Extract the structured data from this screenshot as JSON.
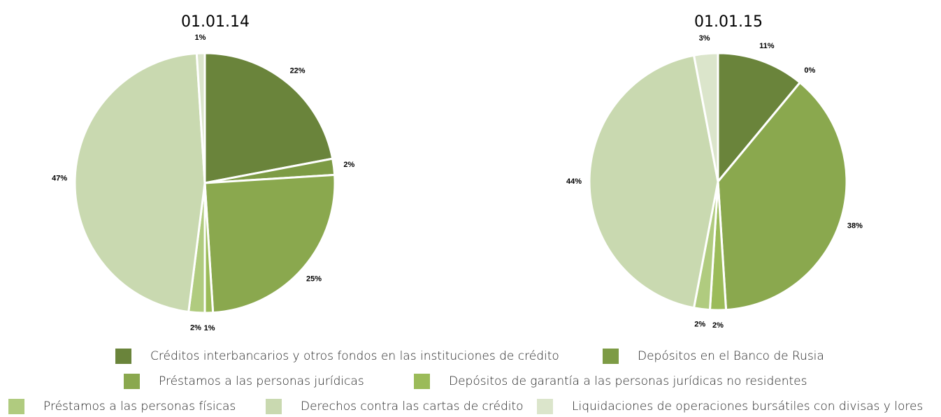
{
  "chart_data": [
    {
      "type": "pie",
      "title": "01.01.14",
      "categories": [
        "Créditos interbancarios y otros fondos en las instituciones de crédito",
        "Depósitos en el Banco de Rusia",
        "Préstamos a las personas jurídicas",
        "Depósitos de garantía a las personas jurídicas no residentes",
        "Préstamos a las personas físicas",
        "Derechos contra las cartas de crédito",
        "Liquidaciones de operaciones bursátiles con divisas y lores"
      ],
      "values": [
        22,
        2,
        25,
        1,
        2,
        47,
        1
      ],
      "value_labels": [
        "22%",
        "2%",
        "25%",
        "1%",
        "2%",
        "47%",
        "1%"
      ],
      "colors": [
        "#6a843b",
        "#7d9b45",
        "#8aa84e",
        "#9bbb59",
        "#b0cb7f",
        "#c9d9b0",
        "#dbe5cb"
      ]
    },
    {
      "type": "pie",
      "title": "01.01.15",
      "categories": [
        "Créditos interbancarios y otros fondos en las instituciones de crédito",
        "Depósitos en el Banco de Rusia",
        "Préstamos a las personas jurídicas",
        "Depósitos de garantía a las personas jurídicas no residentes",
        "Préstamos a las personas físicas",
        "Derechos contra las cartas de crédito",
        "Liquidaciones de operaciones bursátiles con divisas y lores"
      ],
      "values": [
        11,
        0,
        38,
        2,
        2,
        44,
        3
      ],
      "value_labels": [
        "11%",
        "0%",
        "38%",
        "2%",
        "2%",
        "44%",
        "3%"
      ],
      "colors": [
        "#6a843b",
        "#7d9b45",
        "#8aa84e",
        "#9bbb59",
        "#b0cb7f",
        "#c9d9b0",
        "#dbe5cb"
      ]
    }
  ]
}
